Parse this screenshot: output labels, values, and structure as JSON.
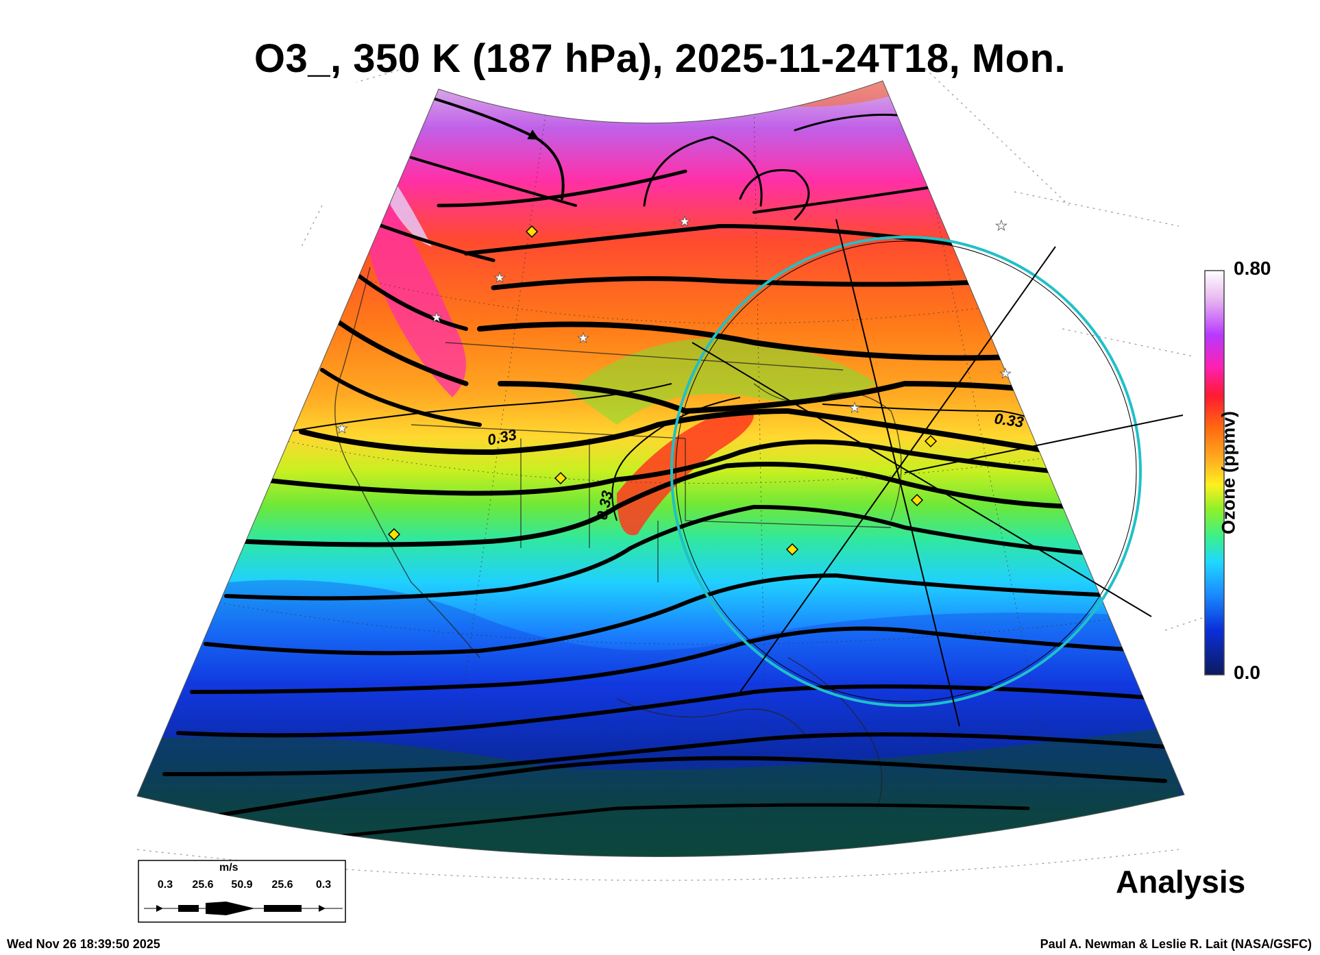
{
  "figure": {
    "title": "O3_, 350 K (187 hPa), 2025-11-24T18, Mon.",
    "product_label": "Analysis",
    "timestamp": "Wed Nov 26 18:39:50 2025",
    "credit": "Paul A. Newman & Leslie R. Lait (NASA/GSFC)"
  },
  "colorbar": {
    "title": "Ozone (ppmv)",
    "max_label": "0.80",
    "min_label": "0.0",
    "stops": [
      "#0d1a5e",
      "#0a2fd8",
      "#1a8cff",
      "#20d8ff",
      "#3af08c",
      "#8ff028",
      "#fff020",
      "#ffb020",
      "#ff6a10",
      "#ff1a30",
      "#ff20b0",
      "#b838ff",
      "#e8b8f0",
      "#ffffff"
    ]
  },
  "wind_scale": {
    "unit": "m/s",
    "labels": [
      "0.3",
      "25.6",
      "50.9",
      "25.6",
      "0.3"
    ]
  },
  "contour_labels": [
    "0.33",
    "0.33",
    "0.33"
  ],
  "map": {
    "projection": "polar stereographic sector",
    "sonde_markers": "yellow-diamond",
    "station_markers": "white-star",
    "range_circle_color": "#20c0c8"
  }
}
